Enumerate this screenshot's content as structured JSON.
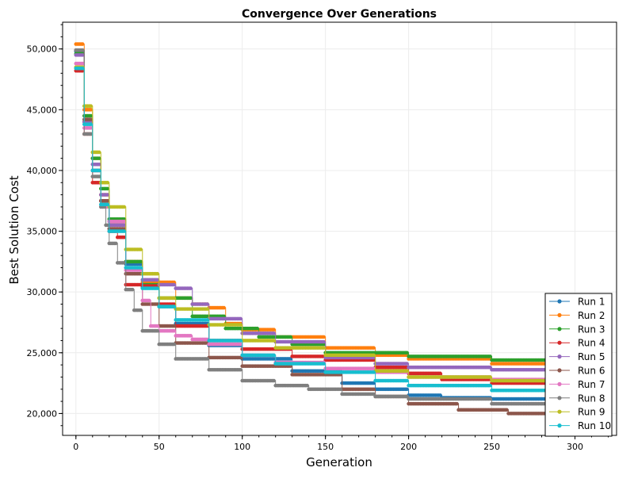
{
  "chart_data": {
    "type": "line",
    "title": "Convergence Over Generations",
    "xlabel": "Generation",
    "ylabel": "Best Solution Cost",
    "xlim": [
      -8,
      325
    ],
    "ylim": [
      18200,
      52200
    ],
    "x_ticks": [
      0,
      50,
      100,
      150,
      200,
      250,
      300
    ],
    "x_tick_labels": [
      "0",
      "50",
      "100",
      "150",
      "200",
      "250",
      "300"
    ],
    "y_ticks": [
      20000,
      25000,
      30000,
      35000,
      40000,
      45000,
      50000
    ],
    "y_tick_labels": [
      "20,000",
      "25,000",
      "30,000",
      "35,000",
      "40,000",
      "45,000",
      "50,000"
    ],
    "grid": true,
    "legend_position": "bottom-right",
    "series": [
      {
        "name": "Run 1",
        "color": "#1f77b4",
        "points": [
          [
            0,
            49800
          ],
          [
            5,
            44000
          ],
          [
            10,
            40000
          ],
          [
            15,
            37500
          ],
          [
            20,
            35800
          ],
          [
            30,
            32300
          ],
          [
            40,
            30400
          ],
          [
            50,
            28800
          ],
          [
            60,
            27400
          ],
          [
            80,
            25600
          ],
          [
            100,
            24500
          ],
          [
            130,
            23500
          ],
          [
            160,
            22500
          ],
          [
            180,
            22000
          ],
          [
            200,
            21500
          ],
          [
            220,
            21300
          ],
          [
            250,
            21200
          ],
          [
            300,
            21100
          ]
        ]
      },
      {
        "name": "Run 2",
        "color": "#ff7f0e",
        "points": [
          [
            0,
            50400
          ],
          [
            5,
            45000
          ],
          [
            10,
            41000
          ],
          [
            15,
            38000
          ],
          [
            20,
            35500
          ],
          [
            30,
            32500
          ],
          [
            40,
            30800
          ],
          [
            60,
            29500
          ],
          [
            70,
            29000
          ],
          [
            80,
            28700
          ],
          [
            90,
            27400
          ],
          [
            100,
            26900
          ],
          [
            120,
            26300
          ],
          [
            150,
            25400
          ],
          [
            180,
            24800
          ],
          [
            200,
            24500
          ],
          [
            250,
            24100
          ],
          [
            300,
            23900
          ]
        ]
      },
      {
        "name": "Run 3",
        "color": "#2ca02c",
        "points": [
          [
            0,
            49600
          ],
          [
            5,
            44500
          ],
          [
            10,
            41000
          ],
          [
            15,
            38500
          ],
          [
            20,
            36000
          ],
          [
            30,
            32500
          ],
          [
            40,
            30600
          ],
          [
            50,
            29500
          ],
          [
            70,
            28000
          ],
          [
            90,
            27000
          ],
          [
            110,
            26300
          ],
          [
            130,
            25700
          ],
          [
            150,
            25000
          ],
          [
            200,
            24700
          ],
          [
            250,
            24400
          ],
          [
            300,
            24300
          ]
        ]
      },
      {
        "name": "Run 4",
        "color": "#d62728",
        "points": [
          [
            0,
            48200
          ],
          [
            5,
            43000
          ],
          [
            10,
            39000
          ],
          [
            15,
            37500
          ],
          [
            20,
            35000
          ],
          [
            25,
            34500
          ],
          [
            30,
            30600
          ],
          [
            40,
            30500
          ],
          [
            50,
            29000
          ],
          [
            60,
            27200
          ],
          [
            80,
            26000
          ],
          [
            100,
            25300
          ],
          [
            130,
            24700
          ],
          [
            150,
            24400
          ],
          [
            180,
            23800
          ],
          [
            200,
            23300
          ],
          [
            220,
            22800
          ],
          [
            250,
            22500
          ],
          [
            300,
            22300
          ]
        ]
      },
      {
        "name": "Run 5",
        "color": "#9467bd",
        "points": [
          [
            0,
            49500
          ],
          [
            5,
            44000
          ],
          [
            10,
            40500
          ],
          [
            15,
            38000
          ],
          [
            20,
            35500
          ],
          [
            30,
            32000
          ],
          [
            40,
            31000
          ],
          [
            50,
            30600
          ],
          [
            60,
            30300
          ],
          [
            70,
            29000
          ],
          [
            80,
            27800
          ],
          [
            100,
            26600
          ],
          [
            120,
            25900
          ],
          [
            150,
            24600
          ],
          [
            180,
            24100
          ],
          [
            200,
            23800
          ],
          [
            250,
            23600
          ],
          [
            300,
            23500
          ]
        ]
      },
      {
        "name": "Run 6",
        "color": "#8c564b",
        "points": [
          [
            0,
            49900
          ],
          [
            5,
            44200
          ],
          [
            10,
            40000
          ],
          [
            15,
            37500
          ],
          [
            20,
            35200
          ],
          [
            30,
            31500
          ],
          [
            40,
            29000
          ],
          [
            50,
            27200
          ],
          [
            60,
            25800
          ],
          [
            80,
            24600
          ],
          [
            100,
            23900
          ],
          [
            130,
            23200
          ],
          [
            160,
            22000
          ],
          [
            180,
            21400
          ],
          [
            200,
            20800
          ],
          [
            230,
            20300
          ],
          [
            260,
            20000
          ],
          [
            300,
            19700
          ]
        ]
      },
      {
        "name": "Run 7",
        "color": "#e377c2",
        "points": [
          [
            0,
            48800
          ],
          [
            5,
            43500
          ],
          [
            10,
            40000
          ],
          [
            15,
            37000
          ],
          [
            20,
            35800
          ],
          [
            30,
            31800
          ],
          [
            40,
            29300
          ],
          [
            45,
            27200
          ],
          [
            50,
            26800
          ],
          [
            60,
            26400
          ],
          [
            70,
            26100
          ],
          [
            80,
            25700
          ],
          [
            100,
            24800
          ],
          [
            120,
            24200
          ],
          [
            150,
            23700
          ],
          [
            180,
            23400
          ],
          [
            200,
            23000
          ],
          [
            250,
            22800
          ],
          [
            300,
            22600
          ]
        ]
      },
      {
        "name": "Run 8",
        "color": "#7f7f7f",
        "points": [
          [
            0,
            49900
          ],
          [
            5,
            43000
          ],
          [
            10,
            39500
          ],
          [
            15,
            37000
          ],
          [
            18,
            35500
          ],
          [
            20,
            34000
          ],
          [
            25,
            32400
          ],
          [
            30,
            30200
          ],
          [
            35,
            28500
          ],
          [
            40,
            26800
          ],
          [
            50,
            25700
          ],
          [
            60,
            24500
          ],
          [
            80,
            23600
          ],
          [
            100,
            22700
          ],
          [
            120,
            22300
          ],
          [
            140,
            22000
          ],
          [
            160,
            21600
          ],
          [
            180,
            21400
          ],
          [
            200,
            21200
          ],
          [
            250,
            20800
          ],
          [
            300,
            20600
          ]
        ]
      },
      {
        "name": "Run 9",
        "color": "#bcbd22",
        "points": [
          [
            0,
            48500
          ],
          [
            5,
            45300
          ],
          [
            10,
            41500
          ],
          [
            15,
            39000
          ],
          [
            20,
            37000
          ],
          [
            30,
            33500
          ],
          [
            40,
            31500
          ],
          [
            50,
            29500
          ],
          [
            60,
            28600
          ],
          [
            80,
            27300
          ],
          [
            100,
            26000
          ],
          [
            120,
            25400
          ],
          [
            150,
            24800
          ],
          [
            180,
            23500
          ],
          [
            200,
            23000
          ],
          [
            250,
            22700
          ],
          [
            300,
            22600
          ]
        ]
      },
      {
        "name": "Run 10",
        "color": "#17becf",
        "points": [
          [
            0,
            48400
          ],
          [
            5,
            43800
          ],
          [
            10,
            40000
          ],
          [
            15,
            37200
          ],
          [
            20,
            35000
          ],
          [
            30,
            32000
          ],
          [
            40,
            30300
          ],
          [
            50,
            28800
          ],
          [
            60,
            27700
          ],
          [
            80,
            26000
          ],
          [
            100,
            24800
          ],
          [
            120,
            24100
          ],
          [
            150,
            23400
          ],
          [
            180,
            22700
          ],
          [
            200,
            22300
          ],
          [
            250,
            21900
          ],
          [
            300,
            21900
          ]
        ]
      }
    ]
  }
}
